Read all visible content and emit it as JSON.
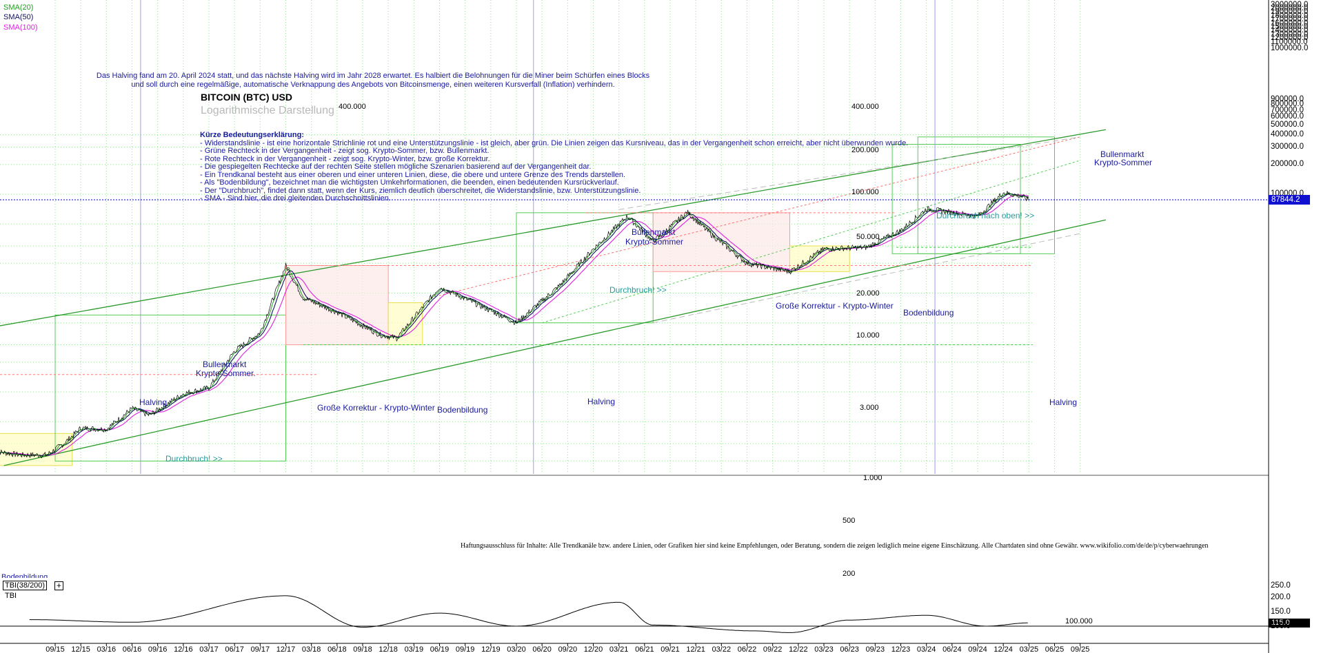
{
  "legend": {
    "sma20": "SMA(20)",
    "sma50": "SMA(50)",
    "sma100": "SMA(100)",
    "colors": {
      "sma20": "#1ea01e",
      "sma50": "#101060",
      "sma100": "#e020e0"
    }
  },
  "halving_note": {
    "line1": "Das Halving fand am 20. April 2024 statt, und das nächste Halving wird im Jahr 2028 erwartet. Es halbiert die Belohnungen für die Miner beim Schürfen eines Blocks",
    "line2": "und soll durch eine regelmäßige, automatische Verknappung des Angebots von Bitcoinsmenge, einen weiteren Kursverfall (Inflation) verhindern."
  },
  "title": "BITCOIN (BTC) USD",
  "subtitle": "Logarithmische Darstellung",
  "explanation": {
    "heading": "Kürze Bedeutungserklärung:",
    "lines": [
      "- Widerstandslinie - ist eine horizontale Strichlinie rot und eine Unterstützungslinie - ist gleich, aber grün. Die Linien zeigen das Kursniveau, das in der Vergangenheit schon erreicht, aber nicht überwunden wurde.",
      "- Grüne Rechteck in der Vergangenheit - zeigt sog. Krypto-Sommer, bzw. Bullenmarkt.",
      " - Rote Rechteck in der Vergangenheit - zeigt sog. Krypto-Winter, bzw. große Korrektur.",
      "- Die gespiegelten Rechtecke auf der rechten Seite stellen mögliche Szenarien basierend auf der Vergangenheit dar.",
      " - Ein Trendkanal besteht aus einer oberen und einer unteren Linien, diese, die obere und untere Grenze des Trends darstellen.",
      " - Als \"Bodenbildung\", bezeichnet man die wichtigsten Umkehrformationen, die beenden, einen bedeutenden Kursrückverlauf.",
      "- Der \"Durchbruch\", findet dann statt, wenn der Kurs, ziemlich deutlich überschreitet, die Widerstandslinie, bzw. Unterstützungslinie.",
      " - SMA - Sind hier, die drei gleitenden Durchschnittslinien."
    ]
  },
  "annotations": {
    "halving": "Halving",
    "bull1": "Bullenmarkt",
    "bull1b": "Krypto-Sommer.",
    "bull2": "Bullenmarkt",
    "bull2b": "Krypto-Sommer",
    "bull3": "Bullenmarkt",
    "bull3b": "Krypto-Sommer",
    "breakout": "Durchbruch! >>",
    "breakout_up": "Durchbruch nach oben! >>",
    "correction": "Große Korrektur - Krypto-Winter",
    "bottom": "Bodenbildung",
    "bottom_cut": "Bodenbildung"
  },
  "in_chart_levels": [
    "400.000",
    "200.000",
    "100.000",
    "50.000",
    "20.000",
    "10.000",
    "3.000",
    "1.000",
    "500",
    "200"
  ],
  "right_axis": [
    "3000000.0",
    "2000000.0",
    "1900000.0",
    "1800000.0",
    "1700000.0",
    "1600000.0",
    "1500000.0",
    "1400000.0",
    "1300000.0",
    "1200000.0",
    "1100000.0",
    "1000000.0",
    "900000.0",
    "800000.0",
    "700000.0",
    "600000.0",
    "500000.0",
    "400000.0",
    "300000.0",
    "200000.0",
    "100000.0"
  ],
  "last_price": "87844.2",
  "disclaimer": "Haftungsausschluss für Inhalte: Alle Trendkanäle bzw. andere Linien, oder Grafiken hier sind keine Empfehlungen, oder Beratung, sondern die zeigen lediglich meine eigene Einschätzung. Alle Chartdaten sind ohne Gewähr.  www.wikifolio.com/de/de/p/cyberwaehrungen",
  "tbi": {
    "label": "TBI(38/200)",
    "sub": "TBI",
    "axis": [
      "250.0",
      "200.0",
      "150.0",
      "100.0"
    ],
    "level_label": "100.000",
    "last": "115.0"
  },
  "chart_data": {
    "type": "line",
    "title": "BITCOIN (BTC) USD",
    "yscale": "log",
    "x_ticks": [
      "09/15",
      "12/15",
      "03/16",
      "06/16",
      "09/16",
      "12/16",
      "03/17",
      "06/17",
      "09/17",
      "12/17",
      "03/18",
      "06/18",
      "09/18",
      "12/18",
      "03/19",
      "06/19",
      "09/19",
      "12/19",
      "03/20",
      "06/20",
      "09/20",
      "12/20",
      "03/21",
      "06/21",
      "09/21",
      "12/21",
      "03/22",
      "06/22",
      "09/22",
      "12/22",
      "03/23",
      "06/23",
      "09/23",
      "12/23",
      "03/24",
      "06/24",
      "09/24",
      "12/24",
      "03/25",
      "06/25",
      "09/25"
    ],
    "series": [
      {
        "name": "BTC",
        "color": "#000000",
        "x": [
          "2015-02",
          "2015-05",
          "2015-08",
          "2015-10",
          "2015-12",
          "2016-03",
          "2016-06",
          "2016-08",
          "2016-12",
          "2017-03",
          "2017-06",
          "2017-09",
          "2017-12",
          "2018-02",
          "2018-06",
          "2018-11",
          "2019-01",
          "2019-06",
          "2019-10",
          "2020-03",
          "2020-08",
          "2020-12",
          "2021-04",
          "2021-07",
          "2021-11",
          "2022-02",
          "2022-06",
          "2022-11",
          "2023-03",
          "2023-08",
          "2023-12",
          "2024-03",
          "2024-09",
          "2024-12",
          "2025-02",
          "2025-03"
        ],
        "y": [
          250,
          230,
          230,
          300,
          430,
          420,
          680,
          580,
          960,
          1100,
          2600,
          4000,
          19000,
          9000,
          6400,
          3800,
          3500,
          11500,
          8000,
          5000,
          11800,
          28000,
          60000,
          33000,
          66000,
          38000,
          20000,
          16500,
          28000,
          29000,
          43000,
          71000,
          60000,
          104000,
          96000,
          87844
        ]
      },
      {
        "name": "SMA(20)",
        "color": "#1ea01e"
      },
      {
        "name": "SMA(50)",
        "color": "#101060"
      },
      {
        "name": "SMA(100)",
        "color": "#e020e0"
      }
    ],
    "tbi": {
      "x": [
        "2015-06",
        "2016-06",
        "2017-12",
        "2018-09",
        "2019-06",
        "2020-03",
        "2021-03",
        "2021-07",
        "2022-07",
        "2022-11",
        "2023-06",
        "2024-03",
        "2024-10",
        "2025-03"
      ],
      "y": [
        130,
        118,
        240,
        95,
        160,
        100,
        210,
        105,
        78,
        70,
        128,
        150,
        100,
        115
      ]
    }
  }
}
